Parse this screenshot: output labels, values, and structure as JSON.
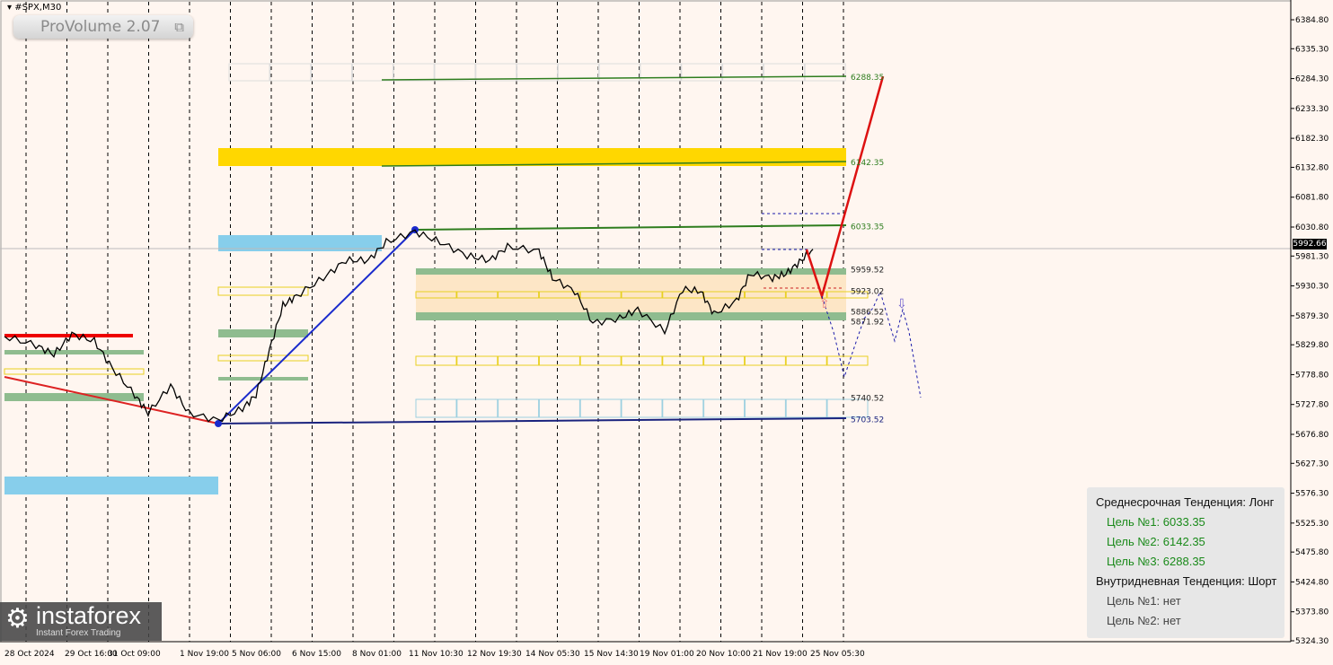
{
  "window": {
    "symbol": "#SPX,M30",
    "indicator": "ProVolume 2.07",
    "indicator_icon": "restore-window-icon"
  },
  "chart_data": {
    "type": "line",
    "title": "",
    "price_axis": {
      "ticks": [
        "6384.80",
        "6335.30",
        "6284.30",
        "6233.30",
        "6182.30",
        "6132.80",
        "6081.80",
        "6030.80",
        "5981.30",
        "5930.30",
        "5879.30",
        "5829.80",
        "5778.80",
        "5727.80",
        "5676.80",
        "5627.30",
        "5576.30",
        "5525.30",
        "5475.80",
        "5424.80",
        "5373.80",
        "5324.30"
      ],
      "range": [
        5324.3,
        6384.8
      ]
    },
    "time_axis": {
      "ticks": [
        "28 Oct 2024",
        "29 Oct 16:00",
        "31 Oct 09:00",
        "1 Nov 19:00",
        "5 Nov 06:00",
        "6 Nov 15:00",
        "8 Nov 01:00",
        "11 Nov 10:30",
        "12 Nov 19:30",
        "14 Nov 05:30",
        "15 Nov 14:30",
        "19 Nov 01:00",
        "20 Nov 10:00",
        "21 Nov 19:00",
        "25 Nov 05:30"
      ]
    },
    "current_price": "5992.66",
    "price_series": [
      5844,
      5829,
      5813,
      5848,
      5836,
      5790,
      5744,
      5713,
      5760,
      5713,
      5701,
      5721,
      5744,
      5821,
      5897,
      5913,
      5944,
      5974,
      5974,
      6005,
      6023,
      6005,
      5982,
      5974,
      5997,
      5990,
      5944,
      5921,
      5867,
      5875,
      5890,
      5852,
      5925,
      5921,
      5882,
      5905,
      5951,
      5944,
      5951,
      5971,
      5993
    ],
    "levels": [
      {
        "label": "6288.35",
        "value": 6288.35,
        "color": "#2e7d1e"
      },
      {
        "label": "6142.35",
        "value": 6142.35,
        "color": "#2e7d1e"
      },
      {
        "label": "6033.35",
        "value": 6033.35,
        "color": "#2e7d1e"
      },
      {
        "label": "5959.52",
        "value": 5959.52,
        "color": "#222222"
      },
      {
        "label": "5923.02",
        "value": 5923.02,
        "color": "#222222"
      },
      {
        "label": "5886.52",
        "value": 5886.52,
        "color": "#222222"
      },
      {
        "label": "5871.92",
        "value": 5871.92,
        "color": "#222222"
      },
      {
        "label": "5740.52",
        "value": 5740.52,
        "color": "#222222"
      },
      {
        "label": "5703.52",
        "value": 5703.52,
        "color": "#1a237e"
      }
    ],
    "grid": "vertical dashed",
    "colors": {
      "background": "#fff6f0",
      "target_zone": "#ffd700",
      "support_zone": "#8fbc8f",
      "resistance_zone": "#87ceeb",
      "forecast": "#dd1111",
      "alt_forecast": "#1a1aaa"
    }
  },
  "panel": {
    "medium_trend": "Среднесрочная Тенденция: Лонг",
    "medium_targets": [
      "Цель №1: 6033.35",
      "Цель №2: 6142.35",
      "Цель №3: 6288.35"
    ],
    "intraday_trend": "Внутридневная Тенденция: Шорт",
    "intraday_targets": [
      "Цель №1: нет",
      "Цель №2: нет"
    ]
  },
  "logo": {
    "name": "instaforex",
    "tagline": "Instant Forex Trading"
  }
}
